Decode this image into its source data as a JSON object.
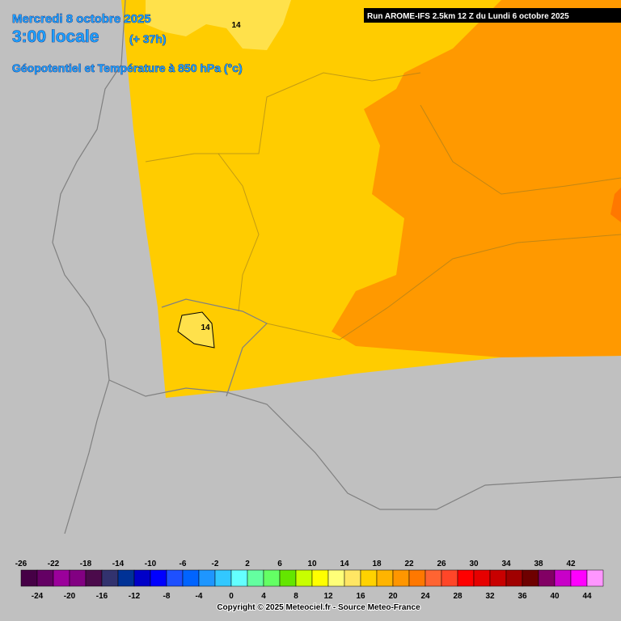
{
  "header": {
    "date": "Mercredi 8 octobre 2025",
    "time": "3:00 locale",
    "lead": "(+ 37h)",
    "title": "Géopotentiel et Température à 850 hPa (°c)"
  },
  "run": "Run AROME-IFS 2.5km 12 Z du Lundi 6 octobre 2025",
  "contour_labels": [
    14,
    14
  ],
  "legend": {
    "top_labels": [
      -26,
      -22,
      -18,
      -14,
      -10,
      -6,
      -2,
      2,
      6,
      10,
      14,
      18,
      22,
      26,
      30,
      34,
      38,
      42
    ],
    "bottom_labels": [
      -24,
      -20,
      -16,
      -12,
      -8,
      -4,
      0,
      4,
      8,
      12,
      16,
      20,
      24,
      28,
      32,
      36,
      40,
      44
    ],
    "colors": [
      "#460046",
      "#640064",
      "#9b009b",
      "#820082",
      "#4b0a4b",
      "#32326e",
      "#003296",
      "#0000c8",
      "#0000ff",
      "#1e50ff",
      "#0064ff",
      "#1e96ff",
      "#32c8ff",
      "#64ffff",
      "#64ffa0",
      "#64ff64",
      "#64e600",
      "#c8ff00",
      "#ffff00",
      "#ffff78",
      "#ffe664",
      "#ffd200",
      "#ffb400",
      "#ff9600",
      "#ff7800",
      "#ff6432",
      "#ff4628",
      "#ff0000",
      "#e60000",
      "#c80000",
      "#a00000",
      "#6e0000",
      "#820064",
      "#c800c8",
      "#ff00ff",
      "#ff96ff"
    ]
  },
  "copyright": "Copyright © 2025 Meteociel.fr - Source Meteo-France"
}
